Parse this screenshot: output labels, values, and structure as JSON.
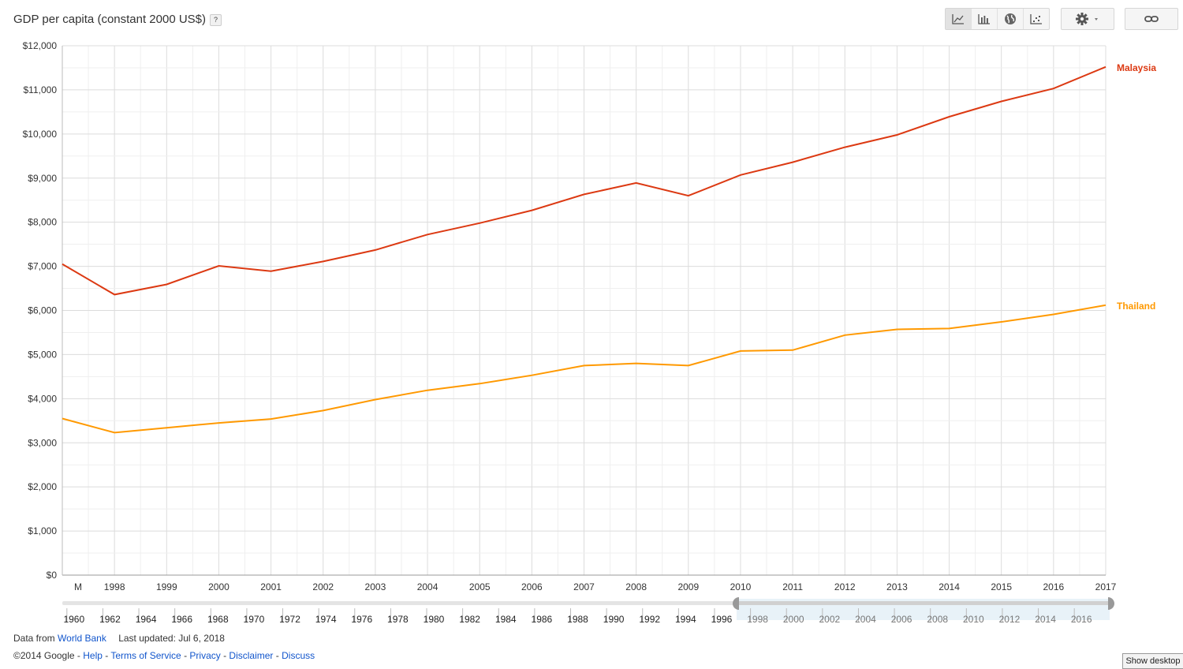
{
  "header": {
    "title": "GDP per capita (constant 2000 US$)",
    "help": "?"
  },
  "toolbar": {
    "chart_types": [
      {
        "name": "line-chart-icon",
        "active": true
      },
      {
        "name": "bar-chart-icon",
        "active": false
      },
      {
        "name": "map-icon",
        "active": false
      },
      {
        "name": "scatter-chart-icon",
        "active": false
      }
    ],
    "settings_icon": "gear-icon",
    "link_icon": "link-icon"
  },
  "chart_data": {
    "type": "line",
    "ylabel_ticks": [
      "$0",
      "$1,000",
      "$2,000",
      "$3,000",
      "$4,000",
      "$5,000",
      "$6,000",
      "$7,000",
      "$8,000",
      "$9,000",
      "$10,000",
      "$11,000",
      "$12,000"
    ],
    "ylim": [
      0,
      12000
    ],
    "x": [
      "M",
      "1998",
      "1999",
      "2000",
      "2001",
      "2002",
      "2003",
      "2004",
      "2005",
      "2006",
      "2007",
      "2008",
      "2009",
      "2010",
      "2011",
      "2012",
      "2013",
      "2014",
      "2015",
      "2016",
      "2017"
    ],
    "series": [
      {
        "name": "Malaysia",
        "color": "#dc3912",
        "values": [
          7050,
          6360,
          6590,
          7010,
          6890,
          7110,
          7370,
          7720,
          7980,
          8270,
          8630,
          8890,
          8600,
          9070,
          9360,
          9700,
          9980,
          10390,
          10740,
          11030,
          11520
        ]
      },
      {
        "name": "Thailand",
        "color": "#ff9900",
        "values": [
          3550,
          3230,
          3340,
          3450,
          3540,
          3730,
          3980,
          4190,
          4340,
          4530,
          4750,
          4800,
          4750,
          5080,
          5100,
          5440,
          5570,
          5590,
          5740,
          5910,
          6120
        ]
      }
    ],
    "grid": true,
    "legend": "right end of lines"
  },
  "timeline": {
    "labels": [
      "1960",
      "1962",
      "1964",
      "1966",
      "1968",
      "1970",
      "1972",
      "1974",
      "1976",
      "1978",
      "1980",
      "1982",
      "1984",
      "1986",
      "1988",
      "1990",
      "1992",
      "1994",
      "1996",
      "1998",
      "2000",
      "2002",
      "2004",
      "2006",
      "2008",
      "2010",
      "2012",
      "2014",
      "2016"
    ],
    "selected_from_label": "1998"
  },
  "footer": {
    "data_from": "Data from",
    "source_link": "World Bank",
    "last_updated": "Last updated: Jul 6, 2018",
    "copyright": "©2014 Google - ",
    "links": [
      "Help",
      "Terms of Service",
      "Privacy",
      "Disclaimer",
      "Discuss"
    ],
    "separator": " - "
  },
  "show_desktop": "Show desktop"
}
